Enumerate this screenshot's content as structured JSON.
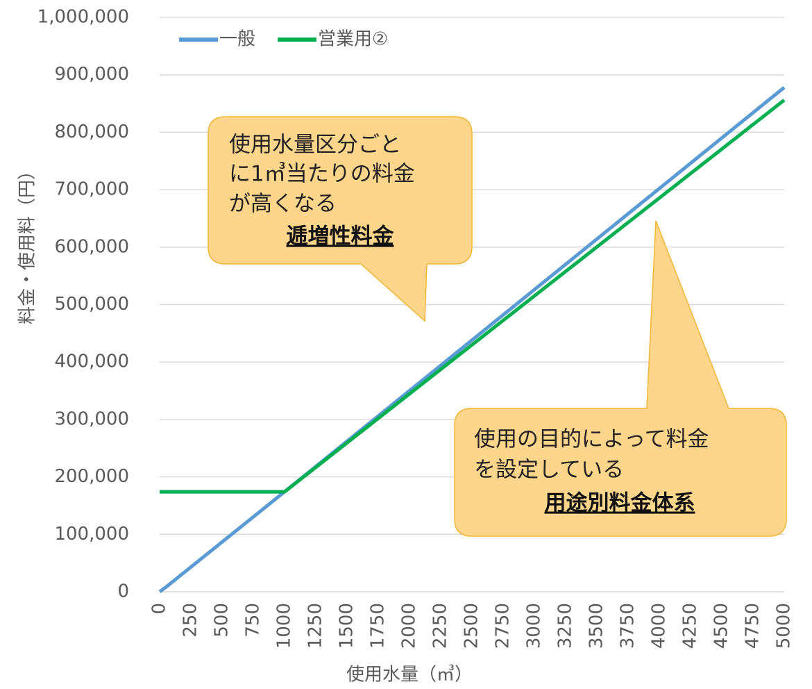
{
  "chart_data": {
    "type": "line",
    "x_label": "使用水量（㎥）",
    "y_label": "料金・使用料（円）",
    "xlim": [
      0,
      5000
    ],
    "xticks": [
      0,
      250,
      500,
      750,
      1000,
      1250,
      1500,
      1750,
      2000,
      2250,
      2500,
      2750,
      3000,
      3250,
      3500,
      3750,
      4000,
      4250,
      4500,
      4750,
      5000
    ],
    "ylim": [
      0,
      1000000
    ],
    "yticks": [
      0,
      {
        "value": 100000,
        "label": "100,000"
      },
      {
        "value": 200000,
        "label": "200,000"
      },
      {
        "value": 300000,
        "label": "300,000"
      },
      {
        "value": 400000,
        "label": "400,000"
      },
      {
        "value": 500000,
        "label": "500,000"
      },
      {
        "value": 600000,
        "label": "600,000"
      },
      {
        "value": 700000,
        "label": "700,000"
      },
      {
        "value": 800000,
        "label": "800,000"
      },
      {
        "value": 900000,
        "label": "900,000"
      },
      {
        "value": 1000000,
        "label": "1,000,000"
      }
    ],
    "grid": true,
    "legend": "top-left",
    "series": [
      {
        "name": "一般",
        "color": "#5b9bd5",
        "x": [
          0,
          50,
          1000,
          5000
        ],
        "values": [
          0,
          8000,
          174000,
          878000
        ]
      },
      {
        "name": "営業用②",
        "color": "#00b050",
        "x": [
          0,
          1000,
          5000
        ],
        "values": [
          174000,
          174000,
          856000
        ]
      }
    ],
    "annotations": [
      {
        "lines": [
          "使用水量区分ごと",
          "に1㎥当たりの料金",
          "が高くなる"
        ],
        "emphasis": "逓増性料金"
      },
      {
        "lines": [
          "使用の目的によって料金",
          "を設定している"
        ],
        "emphasis": "用途別料金体系"
      }
    ]
  }
}
